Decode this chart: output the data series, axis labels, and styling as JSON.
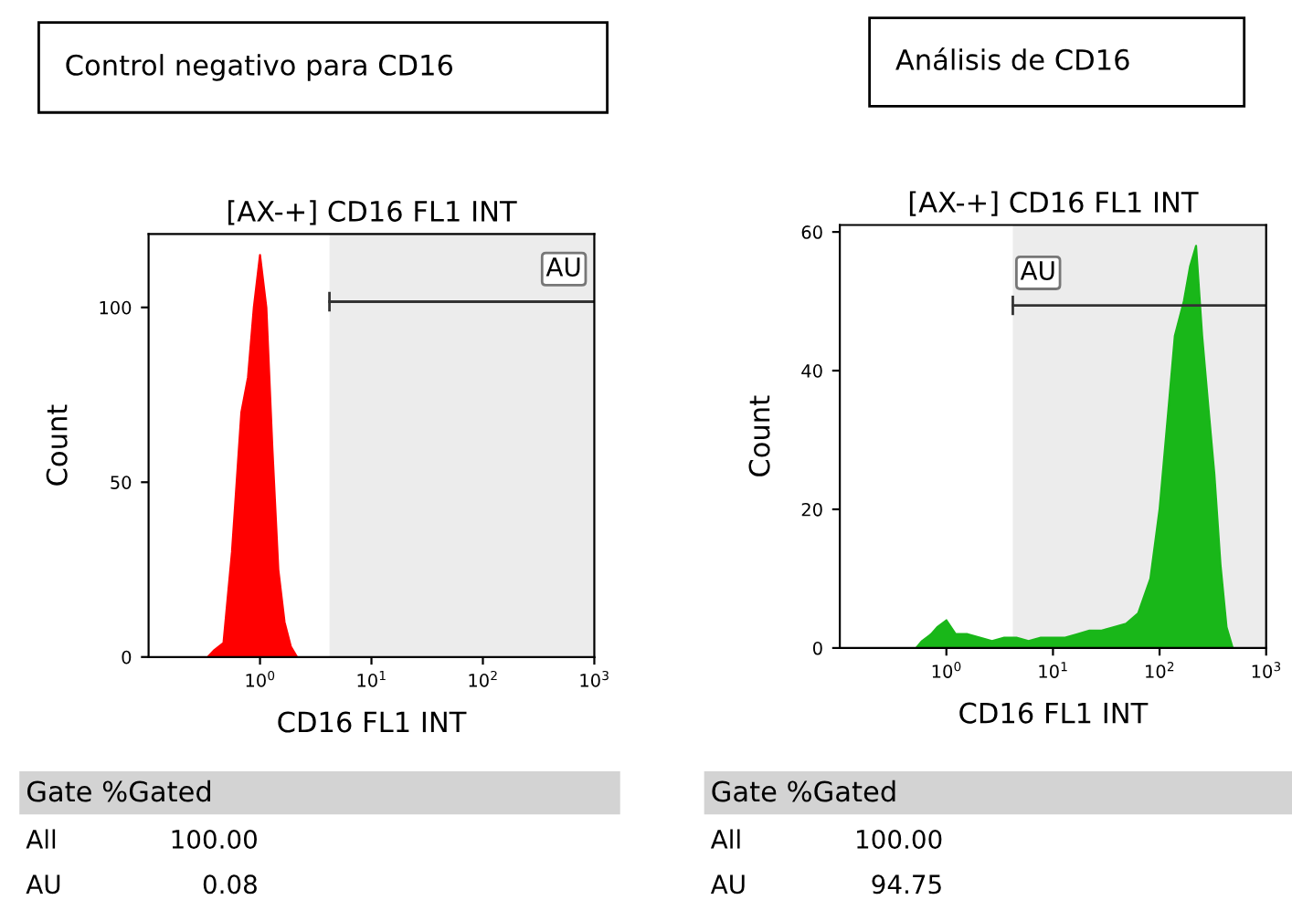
{
  "chart_data": [
    {
      "type": "area",
      "title": "Control negativo para CD16",
      "subtitle": "[AX-+] CD16 FL1 INT",
      "xlabel": "CD16 FL1 INT",
      "ylabel": "Count",
      "log": "x",
      "x": [
        0.34,
        0.39,
        0.47,
        0.56,
        0.68,
        0.78,
        0.88,
        1,
        1.14,
        1.29,
        1.46,
        1.66,
        1.89,
        2.15
      ],
      "series": [
        {
          "color": "#ff0000",
          "values": [
            0,
            2,
            4,
            30,
            70,
            80,
            100,
            115,
            100,
            60,
            25,
            10,
            3,
            0
          ]
        }
      ],
      "xlim": [
        0.1,
        1000
      ],
      "ylim": [
        0,
        121
      ],
      "xticks": [
        {
          "value": 1,
          "label": "10$^{0}$"
        },
        {
          "value": 10,
          "label": "10$^{1}$"
        },
        {
          "value": 100,
          "label": "10$^{2}$"
        },
        {
          "value": 1000,
          "label": "10$^{3}$"
        }
      ],
      "yticks": [
        0,
        50,
        100
      ],
      "bands": [
        {
          "axis": "x",
          "from": 4.2,
          "to": 1000,
          "label": "AU",
          "color": "#ececec"
        }
      ],
      "annotations": [
        "Gate %Gated",
        "All",
        "100.00",
        "AU",
        "0.08"
      ]
    },
    {
      "type": "area",
      "title": "Análisis de CD16",
      "subtitle": "[AX-+] CD16 FL1 INT",
      "xlabel": "CD16 FL1 INT",
      "ylabel": "Count",
      "log": "x",
      "x": [
        0.52,
        0.59,
        0.72,
        0.82,
        1,
        1.22,
        1.58,
        2.06,
        2.68,
        3.49,
        4.54,
        5.9,
        7.69,
        10,
        13,
        16.9,
        22,
        28.6,
        37.3,
        48.5,
        63,
        82,
        100,
        122,
        139,
        169,
        193,
        220,
        251,
        286,
        327,
        373,
        425,
        485
      ],
      "series": [
        {
          "color": "#19b719",
          "values": [
            0,
            1,
            2,
            3,
            4,
            2,
            2,
            1.5,
            1,
            1.5,
            1.5,
            1,
            1.5,
            1.5,
            1.5,
            2,
            2.5,
            2.5,
            3,
            3.5,
            5,
            10,
            20,
            35,
            45,
            50,
            55,
            58,
            45,
            35,
            25,
            12,
            3,
            0
          ]
        }
      ],
      "xlim": [
        0.1,
        1000
      ],
      "ylim": [
        0,
        61
      ],
      "xticks": [
        {
          "value": 1,
          "label": "10$^{0}$"
        },
        {
          "value": 10,
          "label": "10$^{1}$"
        },
        {
          "value": 100,
          "label": "10$^{2}$"
        },
        {
          "value": 1000,
          "label": "10$^{3}$"
        }
      ],
      "yticks": [
        0,
        20,
        40,
        60
      ],
      "bands": [
        {
          "axis": "x",
          "from": 4.2,
          "to": 1000,
          "label": "AU",
          "color": "#ececec"
        }
      ],
      "annotations": [
        "Gate %Gated",
        "All",
        "100.00",
        "AU",
        "94.75"
      ]
    }
  ]
}
